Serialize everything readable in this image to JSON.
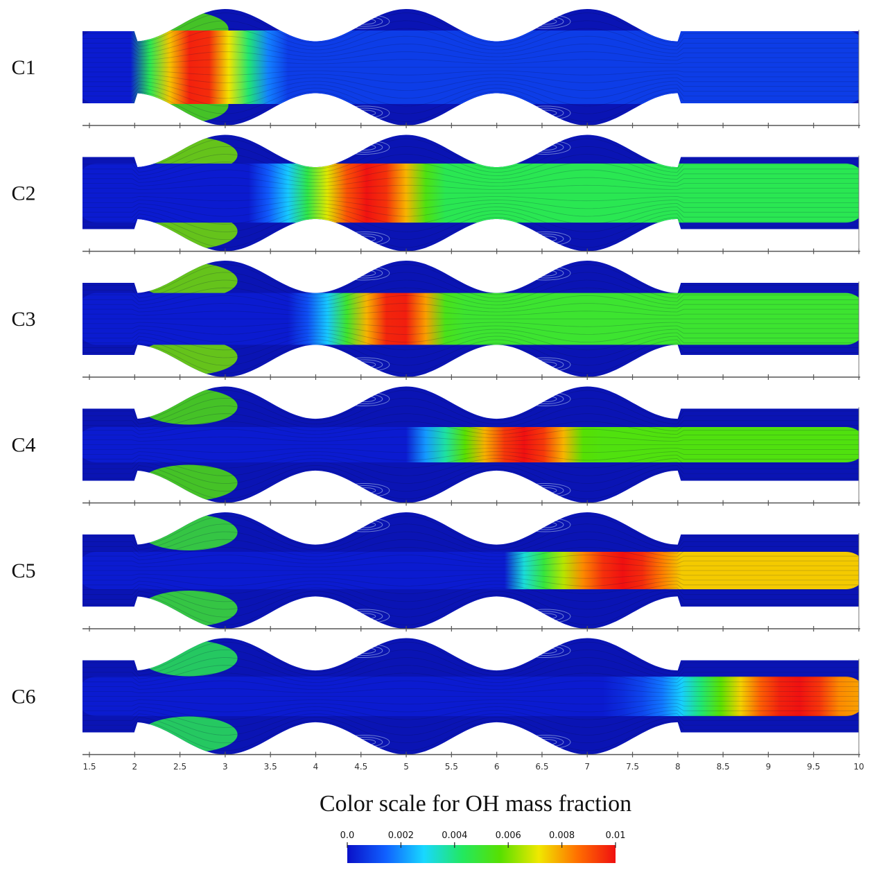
{
  "cases": [
    {
      "label": "C1",
      "peak_x": 2.7,
      "peak_w": 0.75,
      "spread": 0.75,
      "start": 2.0,
      "end": 3.6,
      "base": 0.0,
      "side": 0.55,
      "side_x": 2.5,
      "downstream": 0.08
    },
    {
      "label": "C2",
      "peak_x": 4.6,
      "peak_w": 1.0,
      "spread": 0.55,
      "start": 3.3,
      "end": 6.2,
      "base": 0.0,
      "side": 0.6,
      "side_x": 2.6,
      "downstream": 0.45
    },
    {
      "label": "C3",
      "peak_x": 4.9,
      "peak_w": 0.85,
      "spread": 0.45,
      "start": 3.8,
      "end": 6.5,
      "base": 0.0,
      "side": 0.6,
      "side_x": 2.6,
      "downstream": 0.5
    },
    {
      "label": "C4",
      "peak_x": 6.3,
      "peak_w": 1.1,
      "spread": 0.22,
      "start": 5.0,
      "end": 8.0,
      "base": 0.0,
      "side": 0.55,
      "side_x": 2.6,
      "downstream": 0.55
    },
    {
      "label": "C5",
      "peak_x": 7.4,
      "peak_w": 1.3,
      "spread": 0.25,
      "start": 6.3,
      "end": 10.0,
      "base": 0.0,
      "side": 0.5,
      "side_x": 2.6,
      "downstream": 0.75
    },
    {
      "label": "C6",
      "peak_x": 9.3,
      "peak_w": 1.4,
      "spread": 0.28,
      "start": 7.3,
      "end": 10.0,
      "base": 0.0,
      "side": 0.45,
      "side_x": 2.6,
      "downstream": 0.8
    }
  ],
  "axis": {
    "ticks": [
      "1.5",
      "2",
      "2.5",
      "3",
      "3.5",
      "4",
      "4.5",
      "5",
      "5.5",
      "6",
      "6.5",
      "7",
      "7.5",
      "8",
      "8.5",
      "9",
      "9.5",
      "10"
    ],
    "min": 1.5,
    "max": 10.0
  },
  "colorbar": {
    "title": "Color scale for OH mass fraction",
    "ticks": [
      "0.0",
      "0.002",
      "0.004",
      "0.006",
      "0.008",
      "0.01"
    ],
    "min": 0.0,
    "max": 0.01,
    "colors": [
      "#0a10c8",
      "#1060ff",
      "#18d8ff",
      "#22e860",
      "#58e000",
      "#f0e800",
      "#ff7000",
      "#f01010"
    ]
  },
  "colors": {
    "low": "#0a14b4",
    "high": "#e4140e"
  }
}
